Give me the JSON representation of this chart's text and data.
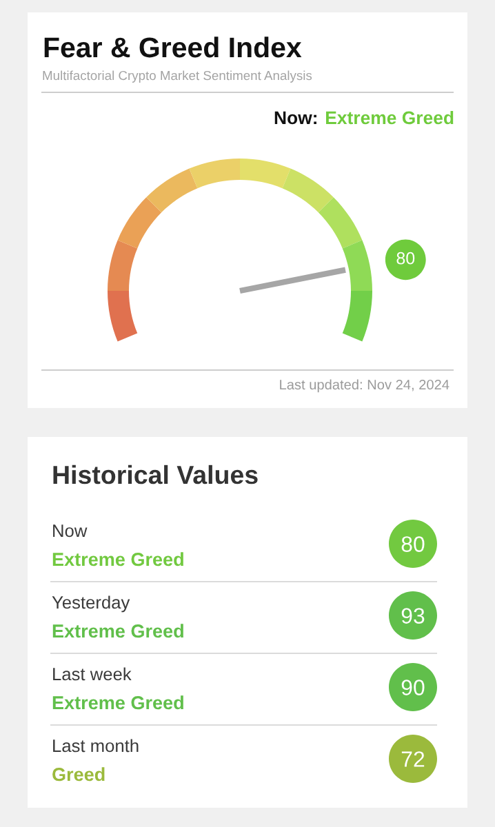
{
  "chart_data": [
    {
      "type": "donut",
      "title": "Fear & Greed Index",
      "subtitle": "Multifactorial Crypto Market Sentiment Analysis",
      "categories": [
        null,
        null,
        null,
        null,
        null,
        null,
        null,
        null,
        "80",
        null
      ],
      "values": [
        10,
        10,
        10,
        10,
        10,
        10,
        10,
        10,
        10,
        10
      ],
      "colors": [
        "#e0714f",
        "#e58a52",
        "#eaa156",
        "#ebb95e",
        "#ebd068",
        "#e3df6a",
        "#cce165",
        "#afe05e",
        "#8fda56",
        "#72cf49"
      ],
      "needle": "80",
      "annotations": [
        "Now:",
        "Extreme Greed",
        "Last updated: Nov 24, 2024"
      ]
    },
    {
      "type": "other",
      "title": "Historical Values",
      "categories": [
        "Now",
        "Yesterday",
        "Last week",
        "Last month"
      ],
      "series": [
        {
          "values": [
            80,
            93,
            90,
            72
          ],
          "colors": [
            "#72c940",
            "#61bf4b",
            "#61bf4b",
            "#9bba3c"
          ]
        }
      ],
      "data_labels": true,
      "annotations": [
        "Extreme Greed",
        "Extreme Greed",
        "Extreme Greed",
        "Greed"
      ]
    }
  ]
}
